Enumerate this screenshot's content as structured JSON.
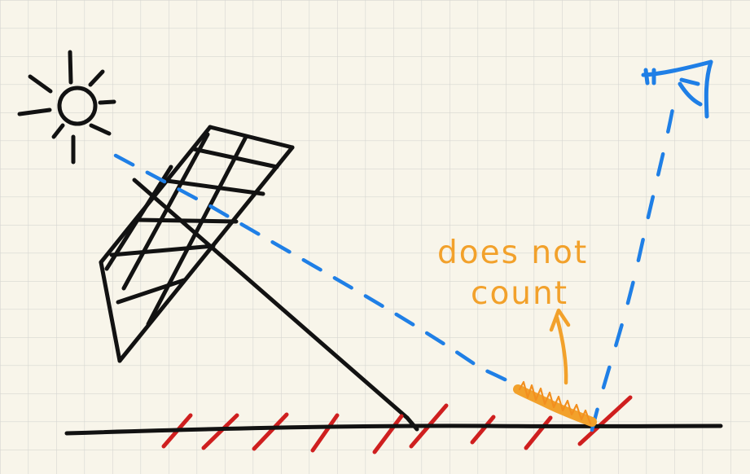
{
  "annotation": {
    "line1": "does not",
    "line2": "count"
  },
  "colors": {
    "paper": "#f8f5ea",
    "grid": "#d6d6d1",
    "ink": "#121212",
    "ray": "#1f7fe6",
    "annotation": "#f2a12b",
    "ground_hatch": "#cf1f1f"
  },
  "icons": {
    "sun": "sun-icon",
    "eye": "eye-icon"
  }
}
